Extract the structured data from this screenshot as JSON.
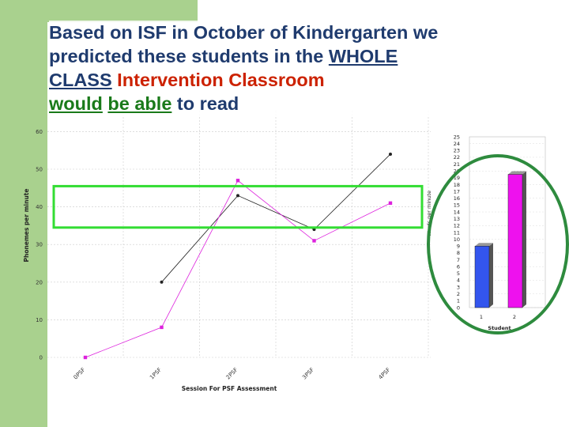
{
  "slide": {
    "title_parts": [
      {
        "text": "Based on ISF in October of Kindergarten we ",
        "style": "plain"
      },
      {
        "text": "predicted these students in the ",
        "style": "plain"
      },
      {
        "text": "WHOLE",
        "style": "underline"
      },
      {
        "text": " ",
        "style": "plain"
      },
      {
        "text": "CLASS",
        "style": "underline"
      },
      {
        "text": " Intervention Classroom",
        "style": "red"
      },
      {
        "text": " ",
        "style": "plain"
      },
      {
        "text": "would",
        "style": "green-underline"
      },
      {
        "text": " ",
        "style": "plain"
      },
      {
        "text": "be able",
        "style": "green-underline"
      },
      {
        "text": " to read",
        "style": "plain"
      }
    ],
    "colors": {
      "sidebar": "#a9d18e",
      "title": "#1f3b6e",
      "band": "#33dd33",
      "ellipse": "#2e8b3e",
      "series1": "#222222",
      "series2": "#dd22dd",
      "bar1": "#3355ee",
      "bar2": "#ee11ee"
    }
  },
  "chart_data": [
    {
      "type": "line",
      "xlabel": "Session For PSF Assessment",
      "ylabel": "Phonemes per minute",
      "categories": [
        "0PSF",
        "1PSF",
        "2PSF",
        "3PSF",
        "4PSF"
      ],
      "ylim": [
        0,
        50
      ],
      "yticks": [
        "0",
        "10",
        "20",
        "30",
        "40",
        "50",
        "60"
      ],
      "grid": true,
      "series": [
        {
          "values": [
            null,
            20,
            43,
            34,
            54
          ]
        },
        {
          "values": [
            0,
            8,
            47,
            31,
            41
          ]
        }
      ],
      "highlight_band": [
        34.5,
        45.5
      ]
    },
    {
      "type": "bar",
      "xlabel": "Student",
      "ylabel": "Words per minute",
      "categories": [
        "1",
        "2"
      ],
      "values": [
        9,
        19.5
      ],
      "ylim": [
        0,
        25
      ],
      "yticks": [
        "0",
        "1",
        "2",
        "3",
        "4",
        "5",
        "6",
        "7",
        "8",
        "9",
        "10",
        "11",
        "12",
        "13",
        "14",
        "15",
        "16",
        "17",
        "18",
        "19",
        "20",
        "21",
        "22",
        "23",
        "24",
        "25"
      ]
    }
  ]
}
